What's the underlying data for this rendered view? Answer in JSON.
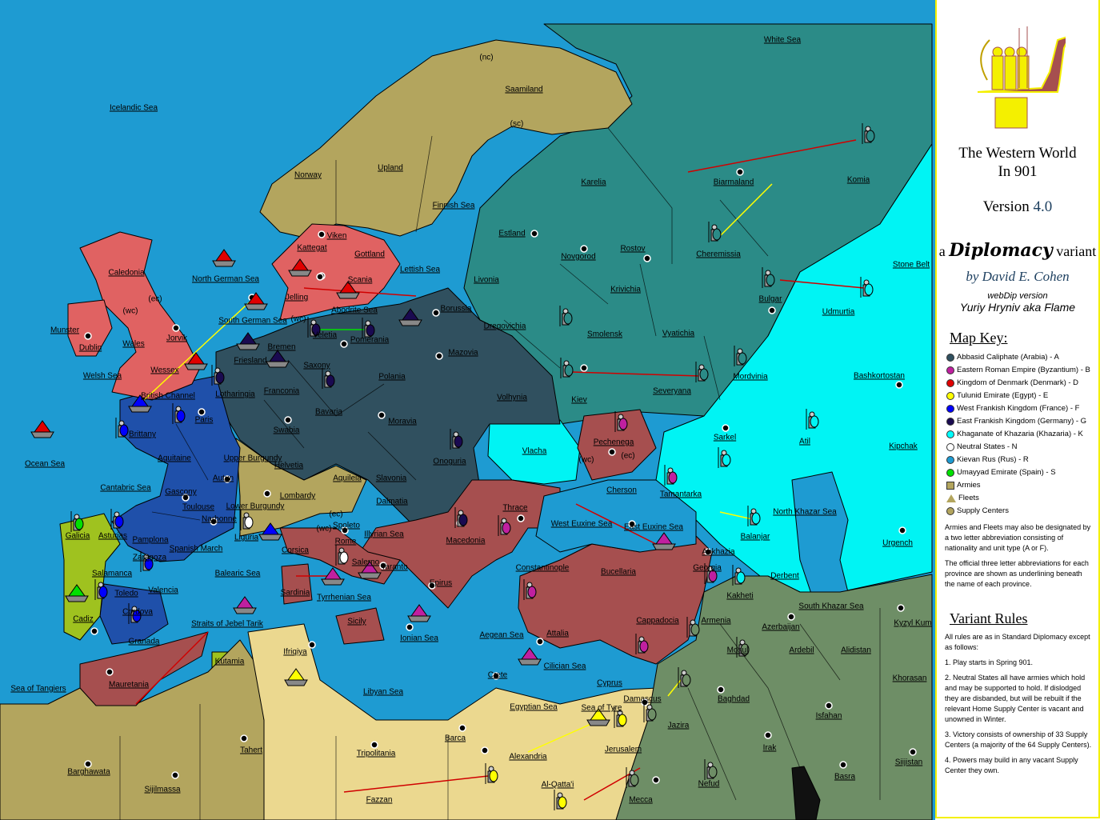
{
  "colors": {
    "sea": "#1e9bd2",
    "neutral_land": "#b3a55e",
    "egypt": "#ebd88f",
    "byzantium": "#a64f4f",
    "denmark": "#e06262",
    "germany": "#30505f",
    "rus": "#2b8b87",
    "khazaria": "#00f4f4",
    "france": "#1f50aa",
    "spain": "#9fc21f",
    "arabia": "#6e8e66"
  },
  "map": {
    "labels": [
      "White Sea",
      "(nc)",
      "Saamiland",
      "(sc)",
      "Icelandic Sea",
      "Upland",
      "Norway",
      "Finnish Sea",
      "Karelia",
      "Biarmaland",
      "Komia",
      "Viken",
      "Kattegat",
      "Gottland",
      "Lettish Sea",
      "Estland",
      "Novgorod",
      "Rostov",
      "Cheremissia",
      "Stone Belt",
      "Caledonia",
      "North German Sea",
      "Scania",
      "Livonia",
      "Krivichia",
      "Bulgar",
      "Udmurtia",
      "(wc)",
      "(ec)",
      "Jelling",
      "Abodrite Sea",
      "Borussia",
      "Munster",
      "South German Sea",
      "(wc)",
      "Dregovichia",
      "Smolensk",
      "Vyatichia",
      "Dublin",
      "Wales",
      "Jorvik",
      "Veletia",
      "Pomerania",
      "Bremen",
      "Mazovia",
      "Welsh Sea",
      "Wessex",
      "Friesland",
      "Saxony",
      "Polania",
      "Kiev",
      "Severyana",
      "Mordvinia",
      "Bashkortostan",
      "British Channel",
      "Lotharingia",
      "Franconia",
      "Volhynia",
      "Paris",
      "Brittany",
      "Bavaria",
      "Moravia",
      "Swabia",
      "Pechenega",
      "Sarkel",
      "Atil",
      "Kipchak",
      "Vlacha",
      "(wc)",
      "(ec)",
      "Aquitaine",
      "Upper Burgundy",
      "Helvetia",
      "Onoguria",
      "Ocean Sea",
      "Cantabric Sea",
      "Autun",
      "Gascony",
      "Aquileia",
      "Slavonia",
      "Cherson",
      "Tamantarka",
      "Toulouse",
      "Lombardy",
      "Lower Burgundy",
      "Dalmatia",
      "Thrace",
      "North Khazar Sea",
      "Narbonne",
      "(ec)",
      "(wc)",
      "Spoleto",
      "Illyrian Sea",
      "West Euxine Sea",
      "East Euxine Sea",
      "Galicia",
      "Asturias",
      "Pamplona",
      "Liguria",
      "Rome",
      "Macedonia",
      "Balanjar",
      "Urgench",
      "Spanish March",
      "Corsica",
      "Zaragoza",
      "Abkhazia",
      "Salerno",
      "Taranto",
      "Constantinople",
      "Salamanca",
      "Balearic Sea",
      "Bucellaria",
      "Georgia",
      "Derbent",
      "Toledo",
      "Valencia",
      "Sardinia",
      "Tyrrhenian Sea",
      "Epirus",
      "Kakheti",
      "South Khazar Sea",
      "Cadiz",
      "Cordova",
      "Straits of Jebel Tarik",
      "Sicily",
      "Cappadocia",
      "Armenia",
      "Azerbaijan",
      "Kyzyl Kum",
      "Granada",
      "Aegean Sea",
      "Attalia",
      "Ionian Sea",
      "Ifriqiya",
      "Ardebil",
      "Alidistan",
      "Mosul",
      "Kutamia",
      "Cilician Sea",
      "Crete",
      "Cyprus",
      "Khorasan",
      "Sea of Tangiers",
      "Mauretania",
      "Libyan Sea",
      "Damascus",
      "Baghdad",
      "Egyptian Sea",
      "Sea of Tyre",
      "Isfahan",
      "Jazira",
      "Barca",
      "Jerusalem",
      "Irak",
      "Tahert",
      "Tripolitania",
      "Alexandria",
      "Siijistan",
      "Barghawata",
      "Basra",
      "Nefud",
      "Al-Qatta'i",
      "Sijilmassa",
      "Fazzan",
      "Mecca"
    ]
  },
  "panel": {
    "title_line1": "The Western World",
    "title_line2": "In 901",
    "version_label": "Version",
    "version_number": "4.0",
    "a": "a",
    "diplomacy": "Diplomacy",
    "variant": "variant",
    "by": "by David E. Cohen",
    "webdip": "webDip version",
    "webdip_author": "Yuriy Hryniv aka Flame",
    "map_key_title": "Map Key:",
    "key": [
      {
        "label": "Abbasid Caliphate (Arabia) - A",
        "color": "#30505f",
        "shape": "circle"
      },
      {
        "label": "Eastern Roman Empire (Byzantium) - B",
        "color": "#c020a0",
        "shape": "circle"
      },
      {
        "label": "Kingdom of Denmark (Denmark) - D",
        "color": "#e00000",
        "shape": "circle"
      },
      {
        "label": "Tulunid Emirate (Egypt) - E",
        "color": "#ffff00",
        "shape": "circle"
      },
      {
        "label": "West Frankish Kingdom (France) - F",
        "color": "#0000ff",
        "shape": "circle"
      },
      {
        "label": "East Frankish Kingdom (Germany) - G",
        "color": "#1a0a50",
        "shape": "circle"
      },
      {
        "label": "Khaganate of Khazaria (Khazaria) - K",
        "color": "#00ffff",
        "shape": "circle"
      },
      {
        "label": "Neutral States - N",
        "color": "#ffffff",
        "shape": "circle"
      },
      {
        "label": "Kievan Rus (Rus) - R",
        "color": "#1e9bd2",
        "shape": "circle"
      },
      {
        "label": "Umayyad Emirate (Spain) - S",
        "color": "#00e000",
        "shape": "circle"
      },
      {
        "label": "Armies",
        "color": "#b3a55e",
        "shape": "square"
      },
      {
        "label": "Fleets",
        "color": "#b3a55e",
        "shape": "triangle"
      },
      {
        "label": "Supply Centers",
        "color": "#b3a55e",
        "shape": "circle"
      }
    ],
    "note1": "Armies and Fleets may also be designated by a two letter abbreviation consisting of nationality and unit type (A or F).",
    "note2": "The official three letter abbreviations for each province are shown as underlining beneath the name of each province.",
    "rules_title": "Variant Rules",
    "rules_intro": "All rules are as in Standard Diplomacy except as follows:",
    "rules": [
      "1. Play starts in Spring 901.",
      "2. Neutral States all have armies which hold and may be supported to hold.  If dislodged they are disbanded, but will be rebuilt if the relevant Home Supply Center is vacant and unowned in Winter.",
      "3. Victory consists of ownership of 33 Supply Centers (a majority of the 64 Supply Centers).",
      "4. Powers may build in any vacant Supply Center they own."
    ]
  }
}
